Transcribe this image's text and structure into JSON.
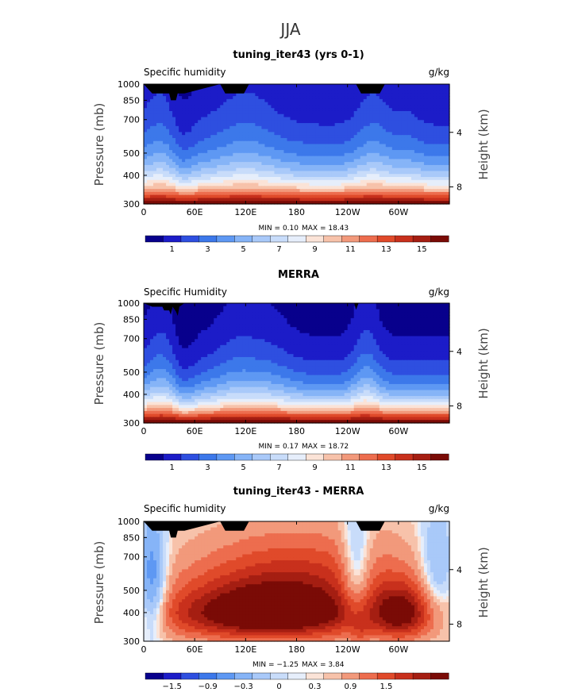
{
  "figure_title": "JJA",
  "palettes": {
    "sequential": [
      "#08008c",
      "#1c1cc8",
      "#2e4fe0",
      "#3c78ea",
      "#5e98f3",
      "#86b4f7",
      "#a9c9f9",
      "#c8dcfa",
      "#e6eefb",
      "#fbe3d7",
      "#f7c2aa",
      "#f2997b",
      "#ed6d4e",
      "#e04a2a",
      "#c8301c",
      "#a51e12",
      "#7a0b06"
    ],
    "difference": [
      "#08008c",
      "#1c1cc8",
      "#2e4fe0",
      "#3c78ea",
      "#5e98f3",
      "#86b4f7",
      "#a9c9f9",
      "#c8dcfa",
      "#e6eefb",
      "#fbe3d7",
      "#f7c2aa",
      "#f2997b",
      "#ed6d4e",
      "#e04a2a",
      "#c8301c",
      "#a51e12",
      "#7a0b06"
    ],
    "terrain": "#000000"
  },
  "chart_data": [
    {
      "type": "heatmap",
      "title": "tuning_iter43 (yrs 0-1)",
      "field_label": "Specific humidity",
      "units": "g/kg",
      "ylabel": "Pressure (mb)",
      "ylabel_right": "Height (km)",
      "x_ticks": [
        "0",
        "60E",
        "120E",
        "180",
        "120W",
        "60W"
      ],
      "y_ticks": [
        "300",
        "400",
        "500",
        "700",
        "850",
        "1000"
      ],
      "height_ticks": [
        "8",
        "4"
      ],
      "x_lim": [
        0,
        360
      ],
      "y_lim": [
        1000,
        300
      ],
      "y_scale": "log",
      "min_label": "MIN =",
      "min_value": "0.10",
      "max_label": "MAX =",
      "max_value": "18.43",
      "colorbar_labels": [
        "1",
        "3",
        "5",
        "7",
        "9",
        "11",
        "13",
        "15"
      ],
      "palette": "sequential",
      "field": "sequential",
      "min": 0.1,
      "max": 18.43,
      "levels": [
        1,
        2,
        3,
        4,
        5,
        6,
        7,
        8,
        9,
        10,
        11,
        12,
        13,
        14,
        15,
        16
      ],
      "terrain_pressure_mb": [
        [
          0,
          1000
        ],
        [
          10,
          910
        ],
        [
          30,
          910
        ],
        [
          32,
          850
        ],
        [
          38,
          850
        ],
        [
          40,
          910
        ],
        [
          48,
          910
        ],
        [
          90,
          1000
        ],
        [
          96,
          910
        ],
        [
          118,
          910
        ],
        [
          124,
          1000
        ],
        [
          250,
          1000
        ],
        [
          256,
          910
        ],
        [
          278,
          910
        ],
        [
          284,
          1000
        ],
        [
          360,
          1000
        ]
      ]
    },
    {
      "type": "heatmap",
      "title": "MERRA",
      "field_label": "Specific Humidity",
      "units": "g/kg",
      "ylabel": "Pressure (mb)",
      "ylabel_right": "Height (km)",
      "x_ticks": [
        "0",
        "60E",
        "120E",
        "180",
        "120W",
        "60W"
      ],
      "y_ticks": [
        "300",
        "400",
        "500",
        "700",
        "850",
        "1000"
      ],
      "height_ticks": [
        "8",
        "4"
      ],
      "x_lim": [
        0,
        360
      ],
      "y_lim": [
        1000,
        300
      ],
      "y_scale": "log",
      "min_label": "MIN =",
      "min_value": "0.17",
      "max_label": "MAX =",
      "max_value": "18.72",
      "colorbar_labels": [
        "1",
        "3",
        "5",
        "7",
        "9",
        "11",
        "13",
        "15"
      ],
      "palette": "sequential",
      "field": "sequential_merra",
      "min": 0.17,
      "max": 18.72,
      "levels": [
        1,
        2,
        3,
        4,
        5,
        6,
        7,
        8,
        9,
        10,
        11,
        12,
        13,
        14,
        15,
        16
      ],
      "terrain_pressure_mb": [
        [
          0,
          1000
        ],
        [
          10,
          965
        ],
        [
          22,
          965
        ],
        [
          24,
          930
        ],
        [
          30,
          930
        ],
        [
          32,
          890
        ],
        [
          34,
          965
        ],
        [
          38,
          920
        ],
        [
          40,
          880
        ],
        [
          42,
          965
        ],
        [
          48,
          1000
        ],
        [
          248,
          1000
        ],
        [
          250,
          935
        ],
        [
          253,
          1000
        ],
        [
          360,
          1000
        ]
      ]
    },
    {
      "type": "heatmap",
      "title": "tuning_iter43 - MERRA",
      "field_label": "Specific humidity",
      "units": "g/kg",
      "ylabel": "Pressure (mb)",
      "ylabel_right": "Height (km)",
      "x_ticks": [
        "0",
        "60E",
        "120E",
        "180",
        "120W",
        "60W"
      ],
      "y_ticks": [
        "300",
        "400",
        "500",
        "700",
        "850",
        "1000"
      ],
      "height_ticks": [
        "8",
        "4"
      ],
      "x_lim": [
        0,
        360
      ],
      "y_lim": [
        1000,
        300
      ],
      "y_scale": "log",
      "min_label": "MIN =",
      "min_value": "−1.25",
      "max_label": "MAX =",
      "max_value": "3.84",
      "colorbar_labels": [
        "−1.5",
        "−0.9",
        "−0.3",
        "0",
        "0.3",
        "0.9",
        "1.5"
      ],
      "palette": "difference",
      "field": "difference",
      "min": -1.25,
      "max": 3.84,
      "levels": [
        -2.1,
        -1.8,
        -1.5,
        -1.2,
        -0.9,
        -0.6,
        -0.3,
        -0.1,
        0,
        0.1,
        0.3,
        0.6,
        0.9,
        1.2,
        1.5,
        1.8
      ],
      "terrain_pressure_mb": [
        [
          0,
          1000
        ],
        [
          10,
          910
        ],
        [
          30,
          910
        ],
        [
          32,
          850
        ],
        [
          38,
          850
        ],
        [
          40,
          910
        ],
        [
          48,
          910
        ],
        [
          90,
          1000
        ],
        [
          96,
          910
        ],
        [
          118,
          910
        ],
        [
          124,
          1000
        ],
        [
          250,
          1000
        ],
        [
          256,
          910
        ],
        [
          278,
          910
        ],
        [
          284,
          1000
        ],
        [
          360,
          1000
        ]
      ]
    }
  ]
}
